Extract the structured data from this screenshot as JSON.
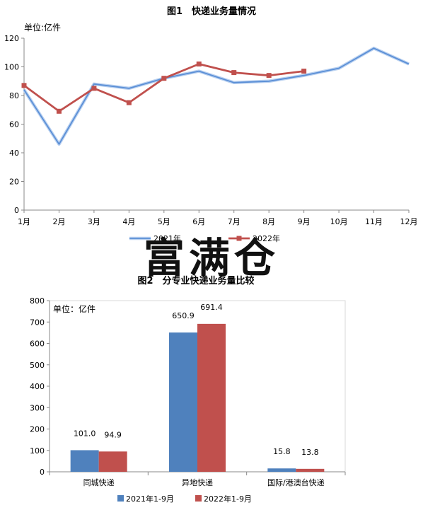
{
  "watermark": "富满仓",
  "chart_data": [
    {
      "type": "line",
      "title": "图1　快递业务量情况",
      "unit_label": "单位:亿件",
      "categories": [
        "1月",
        "2月",
        "3月",
        "4月",
        "5月",
        "6月",
        "7月",
        "8月",
        "9月",
        "10月",
        "11月",
        "12月"
      ],
      "ylim": [
        0,
        120
      ],
      "yticks": [
        0,
        20,
        40,
        60,
        80,
        100,
        120
      ],
      "grid": false,
      "legend_position": "bottom",
      "series": [
        {
          "name": "2021年",
          "color": "#5b8fd6",
          "values": [
            84,
            46,
            88,
            85,
            92,
            97,
            89,
            90,
            94,
            99,
            113,
            102
          ]
        },
        {
          "name": "2022年",
          "color": "#c0504d",
          "values": [
            87,
            69,
            85,
            75,
            92,
            102,
            96,
            94,
            97,
            null,
            null,
            null
          ]
        }
      ]
    },
    {
      "type": "bar",
      "title": "图2　分专业快递业务量比较",
      "unit_label": "单位：亿件",
      "categories": [
        "同城快递",
        "异地快递",
        "国际/港澳台快递"
      ],
      "ylim": [
        0,
        800
      ],
      "yticks": [
        0,
        100,
        200,
        300,
        400,
        500,
        600,
        700,
        800
      ],
      "grid": false,
      "legend_position": "bottom",
      "series": [
        {
          "name": "2021年1-9月",
          "color": "#4f81bd",
          "values": [
            101.0,
            650.9,
            15.8
          ],
          "labels": [
            "101.0",
            "650.9",
            "15.8"
          ]
        },
        {
          "name": "2022年1-9月",
          "color": "#c0504d",
          "values": [
            94.9,
            691.4,
            13.8
          ],
          "labels": [
            "94.9",
            "691.4",
            "13.8"
          ]
        }
      ]
    }
  ]
}
